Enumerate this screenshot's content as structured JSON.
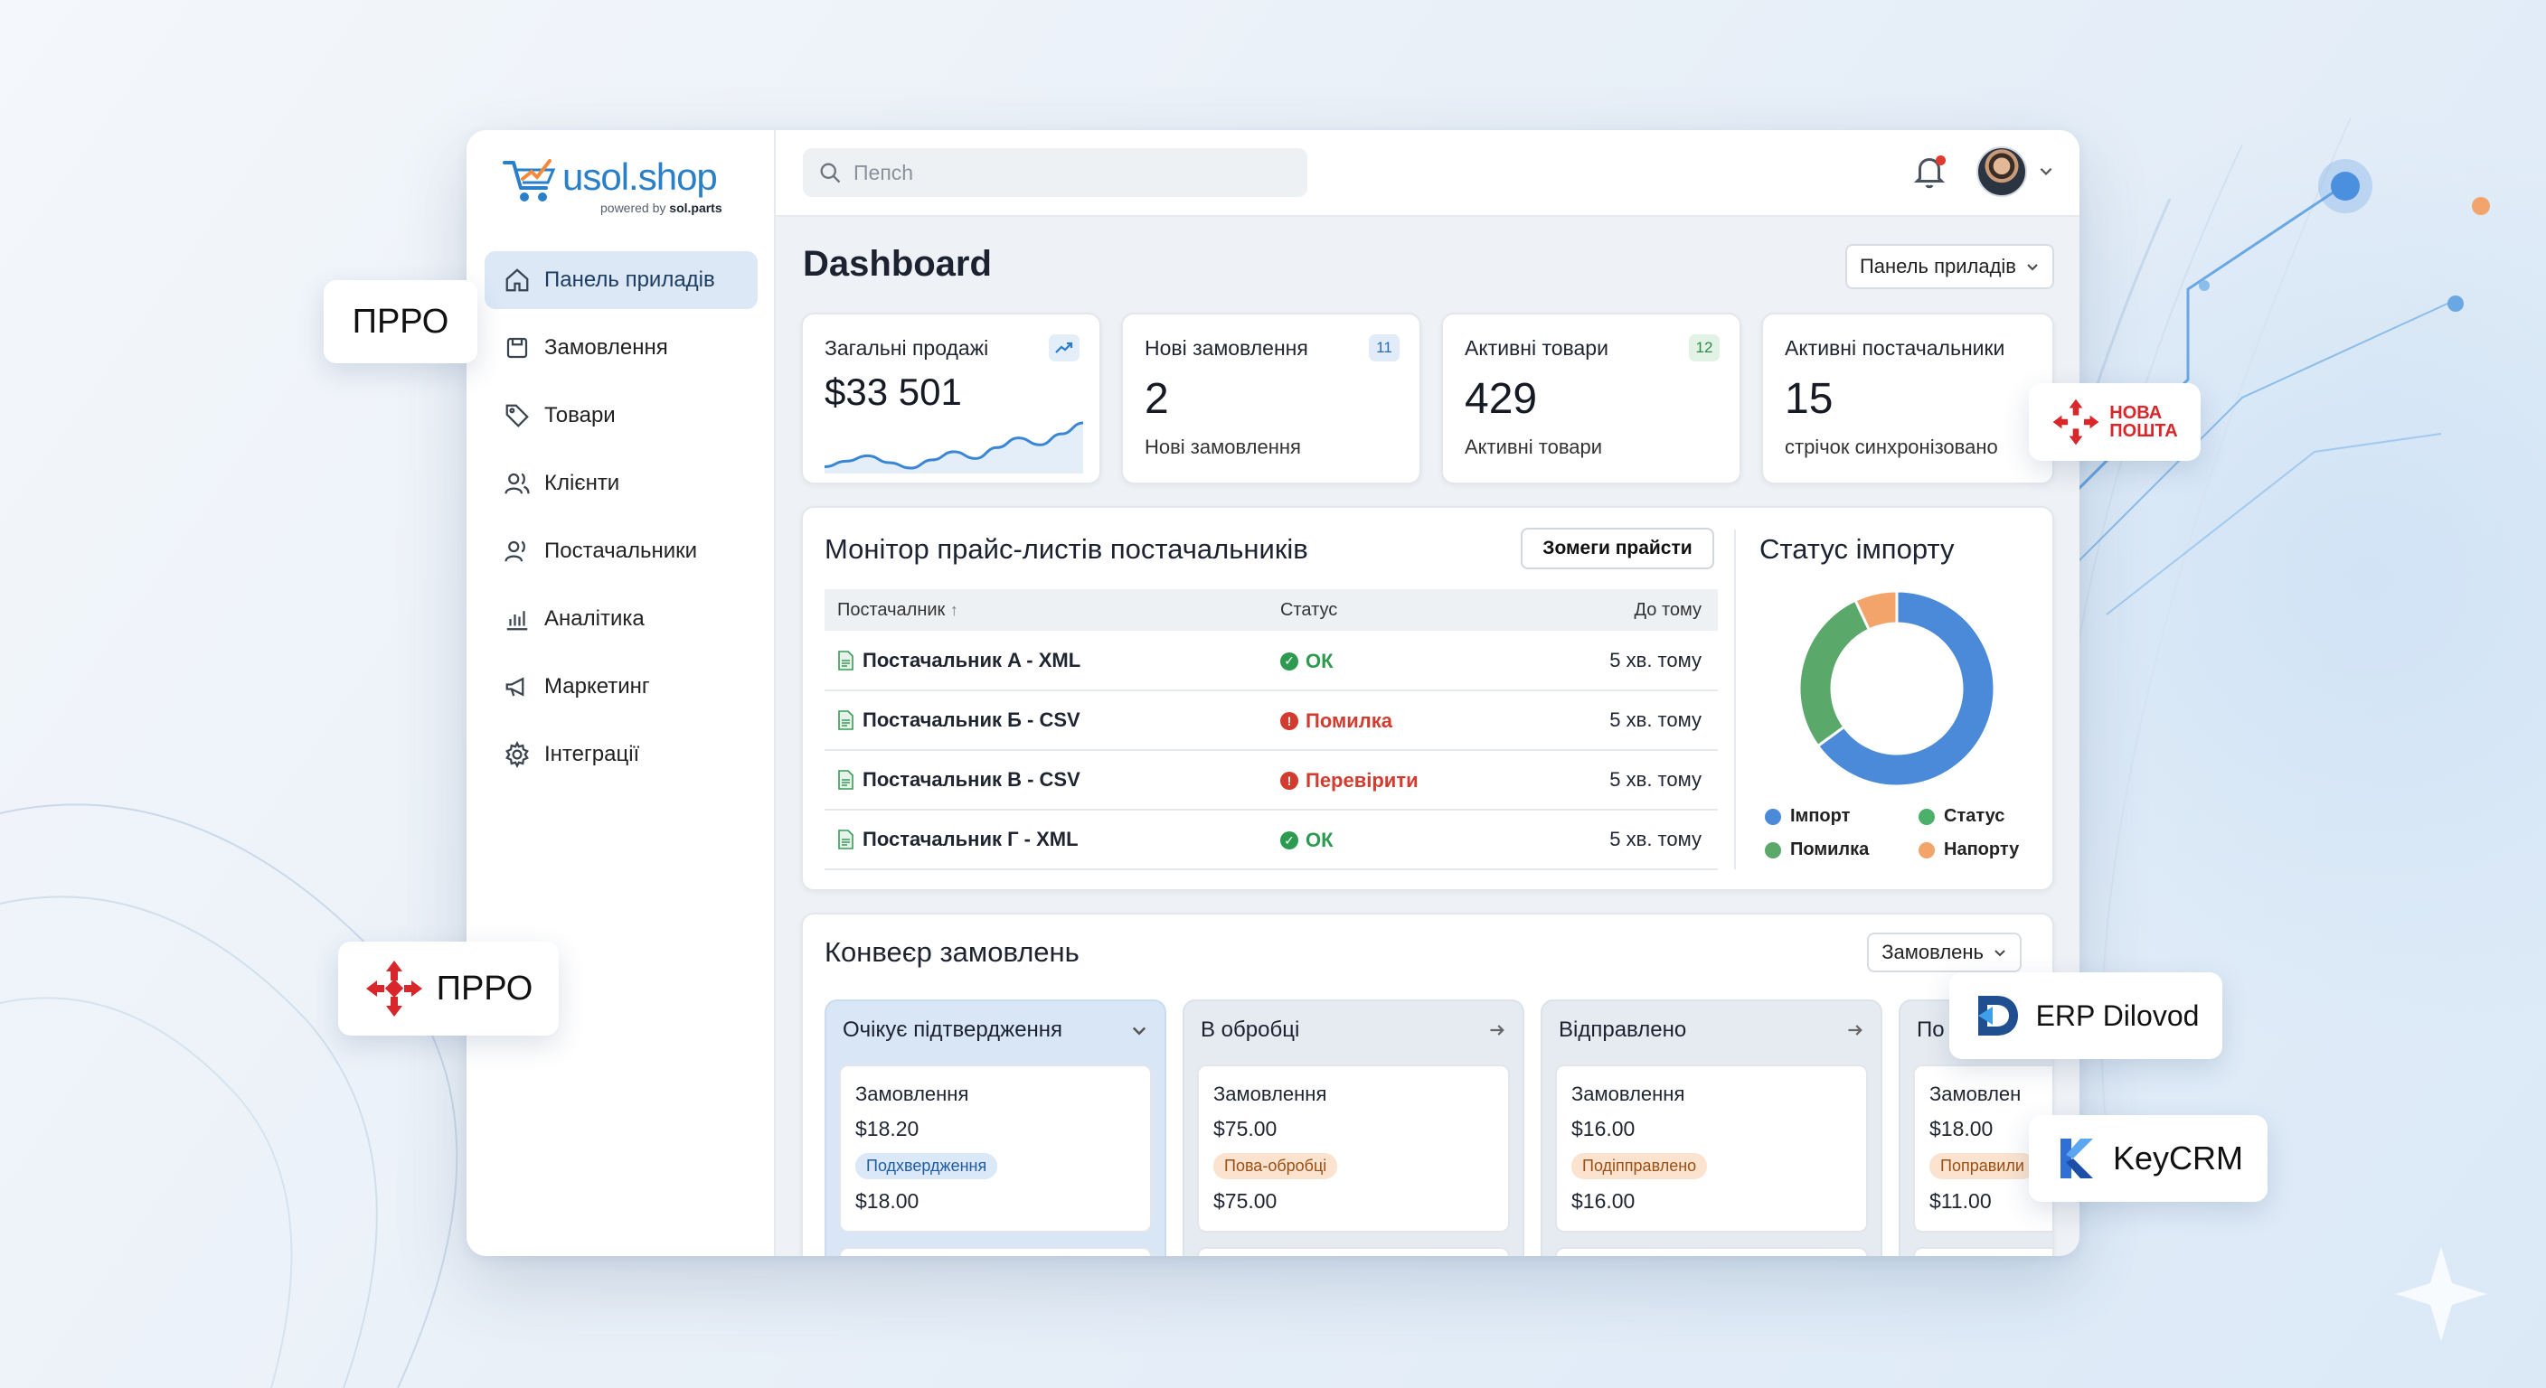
{
  "brand": {
    "name": "usol.shop",
    "tagline_prefix": "powered by",
    "tagline_brand": "sol.parts"
  },
  "sidebar": {
    "items": [
      {
        "label": "Панель приладів",
        "icon": "home-icon",
        "active": true
      },
      {
        "label": "Замовлення",
        "icon": "orders-icon"
      },
      {
        "label": "Товари",
        "icon": "tag-icon"
      },
      {
        "label": "Клієнти",
        "icon": "users-icon"
      },
      {
        "label": "Постачальники",
        "icon": "suppliers-icon"
      },
      {
        "label": "Аналітика",
        "icon": "analytics-icon"
      },
      {
        "label": "Маркетинг",
        "icon": "megaphone-icon"
      },
      {
        "label": "Інтеграції",
        "icon": "gear-icon"
      }
    ]
  },
  "search": {
    "placeholder": "Пепсh"
  },
  "header": {
    "title": "Dashboard",
    "view_select": "Панель приладів"
  },
  "stats": [
    {
      "title": "Загальні продажі",
      "value": "$33 501",
      "badge_icon": "trend-up-icon",
      "sparkline": [
        12,
        16,
        20,
        15,
        11,
        17,
        23,
        18,
        26,
        33,
        28,
        36,
        44
      ]
    },
    {
      "title": "Нові замовлення",
      "value": "2",
      "sub": "Нові замовлення",
      "badge": "11"
    },
    {
      "title": "Активні товари",
      "value": "429",
      "sub": "Активні товари",
      "badge": "12"
    },
    {
      "title": "Активні постачальники",
      "value": "15",
      "sub": "стрічок синхронізовано"
    }
  ],
  "price_monitor": {
    "title": "Монітор прайс-листів постачальників",
    "button": "Зомеги прайсти",
    "columns": [
      "Постачалник",
      "Статус",
      "До тому"
    ],
    "rows": [
      {
        "supplier": "Постачальник A - XML",
        "status": "ОК",
        "status_type": "ok",
        "ago": "5 хв. тому"
      },
      {
        "supplier": "Постачальник Б - CSV",
        "status": "Помилка",
        "status_type": "error",
        "ago": "5 хв. тому"
      },
      {
        "supplier": "Постачальник B - CSV",
        "status": "Перевірити",
        "status_type": "error",
        "ago": "5 хв. тому"
      },
      {
        "supplier": "Постачальник Г - XML",
        "status": "ОК",
        "status_type": "ok",
        "ago": "5 хв. тому"
      }
    ]
  },
  "import_status": {
    "title": "Статус імпорту",
    "legend": [
      "Імпорт",
      "Статус",
      "Помилка",
      "Напорту"
    ]
  },
  "chart_data": {
    "type": "pie",
    "labels": [
      "Імпорт",
      "Помилка",
      "Напорту"
    ],
    "values": [
      65,
      28,
      7
    ],
    "colors": [
      "#4a8ad8",
      "#5aa86a",
      "#f2a46a"
    ]
  },
  "pipeline": {
    "title": "Конвеєр замовлень",
    "select": "Замовлень",
    "columns": [
      {
        "title": "Очікує підтвердження",
        "icon": "chevron-down-icon",
        "card": {
          "title": "Замовлення",
          "price": "$18.20",
          "badge": "Подхвердження",
          "badge_type": "blue",
          "total": "$18.00"
        }
      },
      {
        "title": "В обробці",
        "icon": "arrow-right-icon",
        "card": {
          "title": "Замовлення",
          "price": "$75.00",
          "badge": "Пова-обробці",
          "badge_type": "orange",
          "total": "$75.00"
        }
      },
      {
        "title": "Відправлено",
        "icon": "arrow-right-icon",
        "card": {
          "title": "Замовлення",
          "price": "$16.00",
          "badge": "Подіпправлено",
          "badge_type": "orange",
          "total": "$16.00"
        }
      },
      {
        "title": "По",
        "icon": "",
        "card": {
          "title": "Замовлен",
          "price": "$18.00",
          "badge": "Поправили",
          "badge_type": "orange",
          "total": "$11.00"
        }
      }
    ]
  },
  "floating": {
    "prro_top": "ПРРО",
    "prro_bottom": "ПРРО",
    "nova_line1": "НОВА",
    "nova_line2": "ПОШТА",
    "erp": "ERP Dilovod",
    "keycrm": "KeyCRM"
  },
  "colors": {
    "accent": "#2a7fc9",
    "ok": "#2e9a4f",
    "error": "#d23b2e",
    "nova_red": "#d8262b"
  }
}
